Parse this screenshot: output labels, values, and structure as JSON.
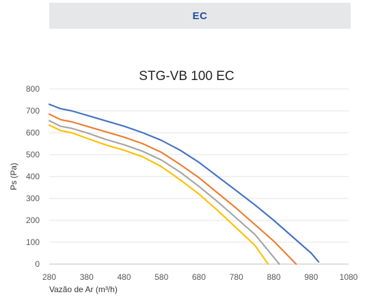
{
  "header": {
    "label": "EC"
  },
  "chart_data": {
    "type": "line",
    "title": "STG-VB 100 EC",
    "xlabel": "Vazão de Ar (m³/h)",
    "ylabel": "Ps (Pa)",
    "xlim": [
      280,
      1080
    ],
    "ylim": [
      0,
      800
    ],
    "xticks": [
      280,
      380,
      480,
      580,
      680,
      780,
      880,
      980,
      1080
    ],
    "yticks": [
      0,
      100,
      200,
      300,
      400,
      500,
      600,
      700,
      800
    ],
    "grid": "horizontal",
    "legend": "none",
    "series": [
      {
        "color": "#4472c4",
        "x": [
          280,
          310,
          340,
          380,
          430,
          480,
          530,
          580,
          630,
          680,
          730,
          780,
          830,
          880,
          930,
          980,
          1000
        ],
        "y": [
          730,
          710,
          700,
          680,
          655,
          630,
          600,
          565,
          520,
          465,
          400,
          335,
          270,
          200,
          125,
          50,
          10
        ]
      },
      {
        "color": "#ed7d31",
        "x": [
          280,
          310,
          340,
          380,
          430,
          480,
          530,
          580,
          630,
          680,
          730,
          780,
          830,
          880,
          940
        ],
        "y": [
          685,
          660,
          650,
          630,
          605,
          580,
          550,
          510,
          455,
          395,
          325,
          255,
          180,
          105,
          0
        ]
      },
      {
        "color": "#a5a5a5",
        "x": [
          280,
          310,
          340,
          380,
          430,
          480,
          530,
          580,
          630,
          680,
          730,
          780,
          830,
          895
        ],
        "y": [
          655,
          630,
          620,
          600,
          570,
          545,
          515,
          475,
          420,
          355,
          285,
          210,
          135,
          0
        ]
      },
      {
        "color": "#ffc000",
        "x": [
          280,
          310,
          340,
          380,
          430,
          480,
          530,
          580,
          630,
          680,
          730,
          780,
          830,
          865
        ],
        "y": [
          635,
          610,
          600,
          575,
          545,
          520,
          490,
          445,
          385,
          320,
          245,
          165,
          85,
          0
        ]
      }
    ]
  }
}
